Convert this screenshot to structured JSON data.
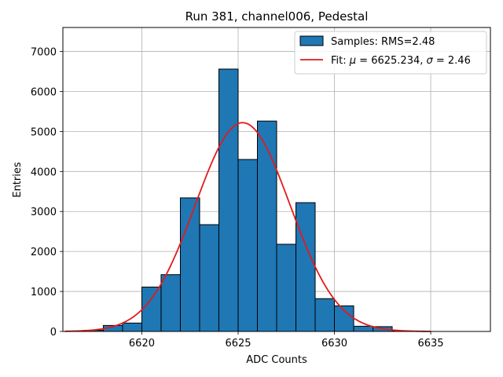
{
  "chart_data": {
    "type": "bar",
    "title": "Run 381, channel006, Pedestal",
    "xlabel": "ADC Counts",
    "ylabel": "Entries",
    "xlim": [
      6615.9,
      6638.1
    ],
    "ylim": [
      0,
      7600
    ],
    "xticks": [
      6620,
      6625,
      6630,
      6635
    ],
    "yticks": [
      0,
      1000,
      2000,
      3000,
      4000,
      5000,
      6000,
      7000
    ],
    "grid": true,
    "bin_width": 1,
    "bins": [
      {
        "left": 6617,
        "value": 30
      },
      {
        "left": 6618,
        "value": 150
      },
      {
        "left": 6619,
        "value": 210
      },
      {
        "left": 6620,
        "value": 1110
      },
      {
        "left": 6621,
        "value": 1420
      },
      {
        "left": 6622,
        "value": 3340
      },
      {
        "left": 6623,
        "value": 2670
      },
      {
        "left": 6624,
        "value": 6560
      },
      {
        "left": 6625,
        "value": 4300
      },
      {
        "left": 6626,
        "value": 5260
      },
      {
        "left": 6627,
        "value": 2180
      },
      {
        "left": 6628,
        "value": 3220
      },
      {
        "left": 6629,
        "value": 820
      },
      {
        "left": 6630,
        "value": 640
      },
      {
        "left": 6631,
        "value": 130
      },
      {
        "left": 6632,
        "value": 120
      },
      {
        "left": 6633,
        "value": 10
      },
      {
        "left": 6634,
        "value": 0
      },
      {
        "left": 6635,
        "value": 0
      },
      {
        "left": 6636,
        "value": 0
      }
    ],
    "fit": {
      "mu": 6625.234,
      "sigma": 2.46,
      "amplitude": 5220,
      "x_range": [
        6616,
        6635
      ]
    },
    "legend": {
      "location": "upper right",
      "samples_label": "Samples: RMS=2.48",
      "fit_prefix": "Fit: ",
      "mu_symbol": "μ",
      "mu_text": " = 6625.234, ",
      "sigma_symbol": "σ",
      "sigma_text": " = 2.46"
    },
    "colors": {
      "bar_fill": "#1f77b4",
      "bar_edge": "#000000",
      "fit_line": "#e31a1c",
      "grid": "#b0b0b0"
    }
  }
}
